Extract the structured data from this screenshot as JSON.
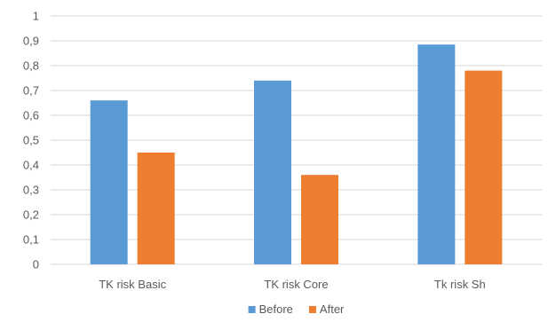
{
  "chart_data": {
    "type": "bar",
    "title": "",
    "xlabel": "",
    "ylabel": "",
    "categories": [
      "TK risk Basic",
      "TK risk Core",
      "Tk risk Sh"
    ],
    "series": [
      {
        "name": "Before",
        "values": [
          0.66,
          0.74,
          0.885
        ],
        "color": "#5B9BD5"
      },
      {
        "name": "After",
        "values": [
          0.45,
          0.36,
          0.78
        ],
        "color": "#ED7D31"
      }
    ],
    "ylim": [
      0,
      1
    ],
    "yticks": [
      "0",
      "0,1",
      "0,2",
      "0,3",
      "0,4",
      "0,5",
      "0,6",
      "0,7",
      "0,8",
      "0,9",
      "1"
    ],
    "grid": true,
    "gridColor": "#D9D9D9",
    "legend": "bottom-center"
  }
}
